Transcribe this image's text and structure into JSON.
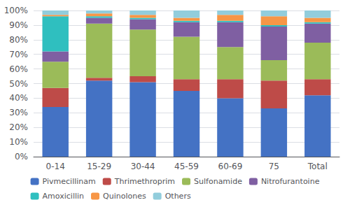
{
  "chart_data": {
    "type": "bar",
    "stacked": true,
    "categories": [
      "0-14",
      "15-29",
      "30-44",
      "45-59",
      "60-69",
      "75",
      "Total"
    ],
    "series": [
      {
        "name": "Pivmecillinam",
        "color": "#4472C4",
        "values": [
          34,
          52,
          51,
          45,
          40,
          33,
          42
        ]
      },
      {
        "name": "Thrimethroprim",
        "color": "#BE4B48",
        "values": [
          13,
          2,
          4,
          8,
          13,
          19,
          11
        ]
      },
      {
        "name": "Sulfonamide",
        "color": "#9BBB59",
        "values": [
          18,
          37,
          32,
          29,
          22,
          14,
          25
        ]
      },
      {
        "name": "Nitrofurantoine",
        "color": "#7F5FA2",
        "values": [
          7,
          4,
          7,
          10,
          17,
          23,
          13
        ]
      },
      {
        "name": "Amoxicillin",
        "color": "#2FBFBF",
        "values": [
          24,
          1,
          1,
          1,
          1,
          1,
          1
        ]
      },
      {
        "name": "Quinolones",
        "color": "#F79646",
        "values": [
          1,
          2,
          2,
          2,
          4,
          6,
          3
        ]
      },
      {
        "name": "Others",
        "color": "#92CDDC",
        "values": [
          3,
          2,
          3,
          5,
          3,
          4,
          5
        ]
      }
    ],
    "ylim": [
      0,
      100
    ],
    "yticks": [
      {
        "value": 0,
        "label": "0%"
      },
      {
        "value": 10,
        "label": "10%"
      },
      {
        "value": 20,
        "label": "20%"
      },
      {
        "value": 30,
        "label": "30%"
      },
      {
        "value": 40,
        "label": "40%"
      },
      {
        "value": 50,
        "label": "50%"
      },
      {
        "value": 60,
        "label": "60%"
      },
      {
        "value": 70,
        "label": "70%"
      },
      {
        "value": 80,
        "label": "80%"
      },
      {
        "value": 90,
        "label": "90%"
      },
      {
        "value": 100,
        "label": "100%"
      }
    ],
    "grid": true,
    "legend": "bottom"
  }
}
